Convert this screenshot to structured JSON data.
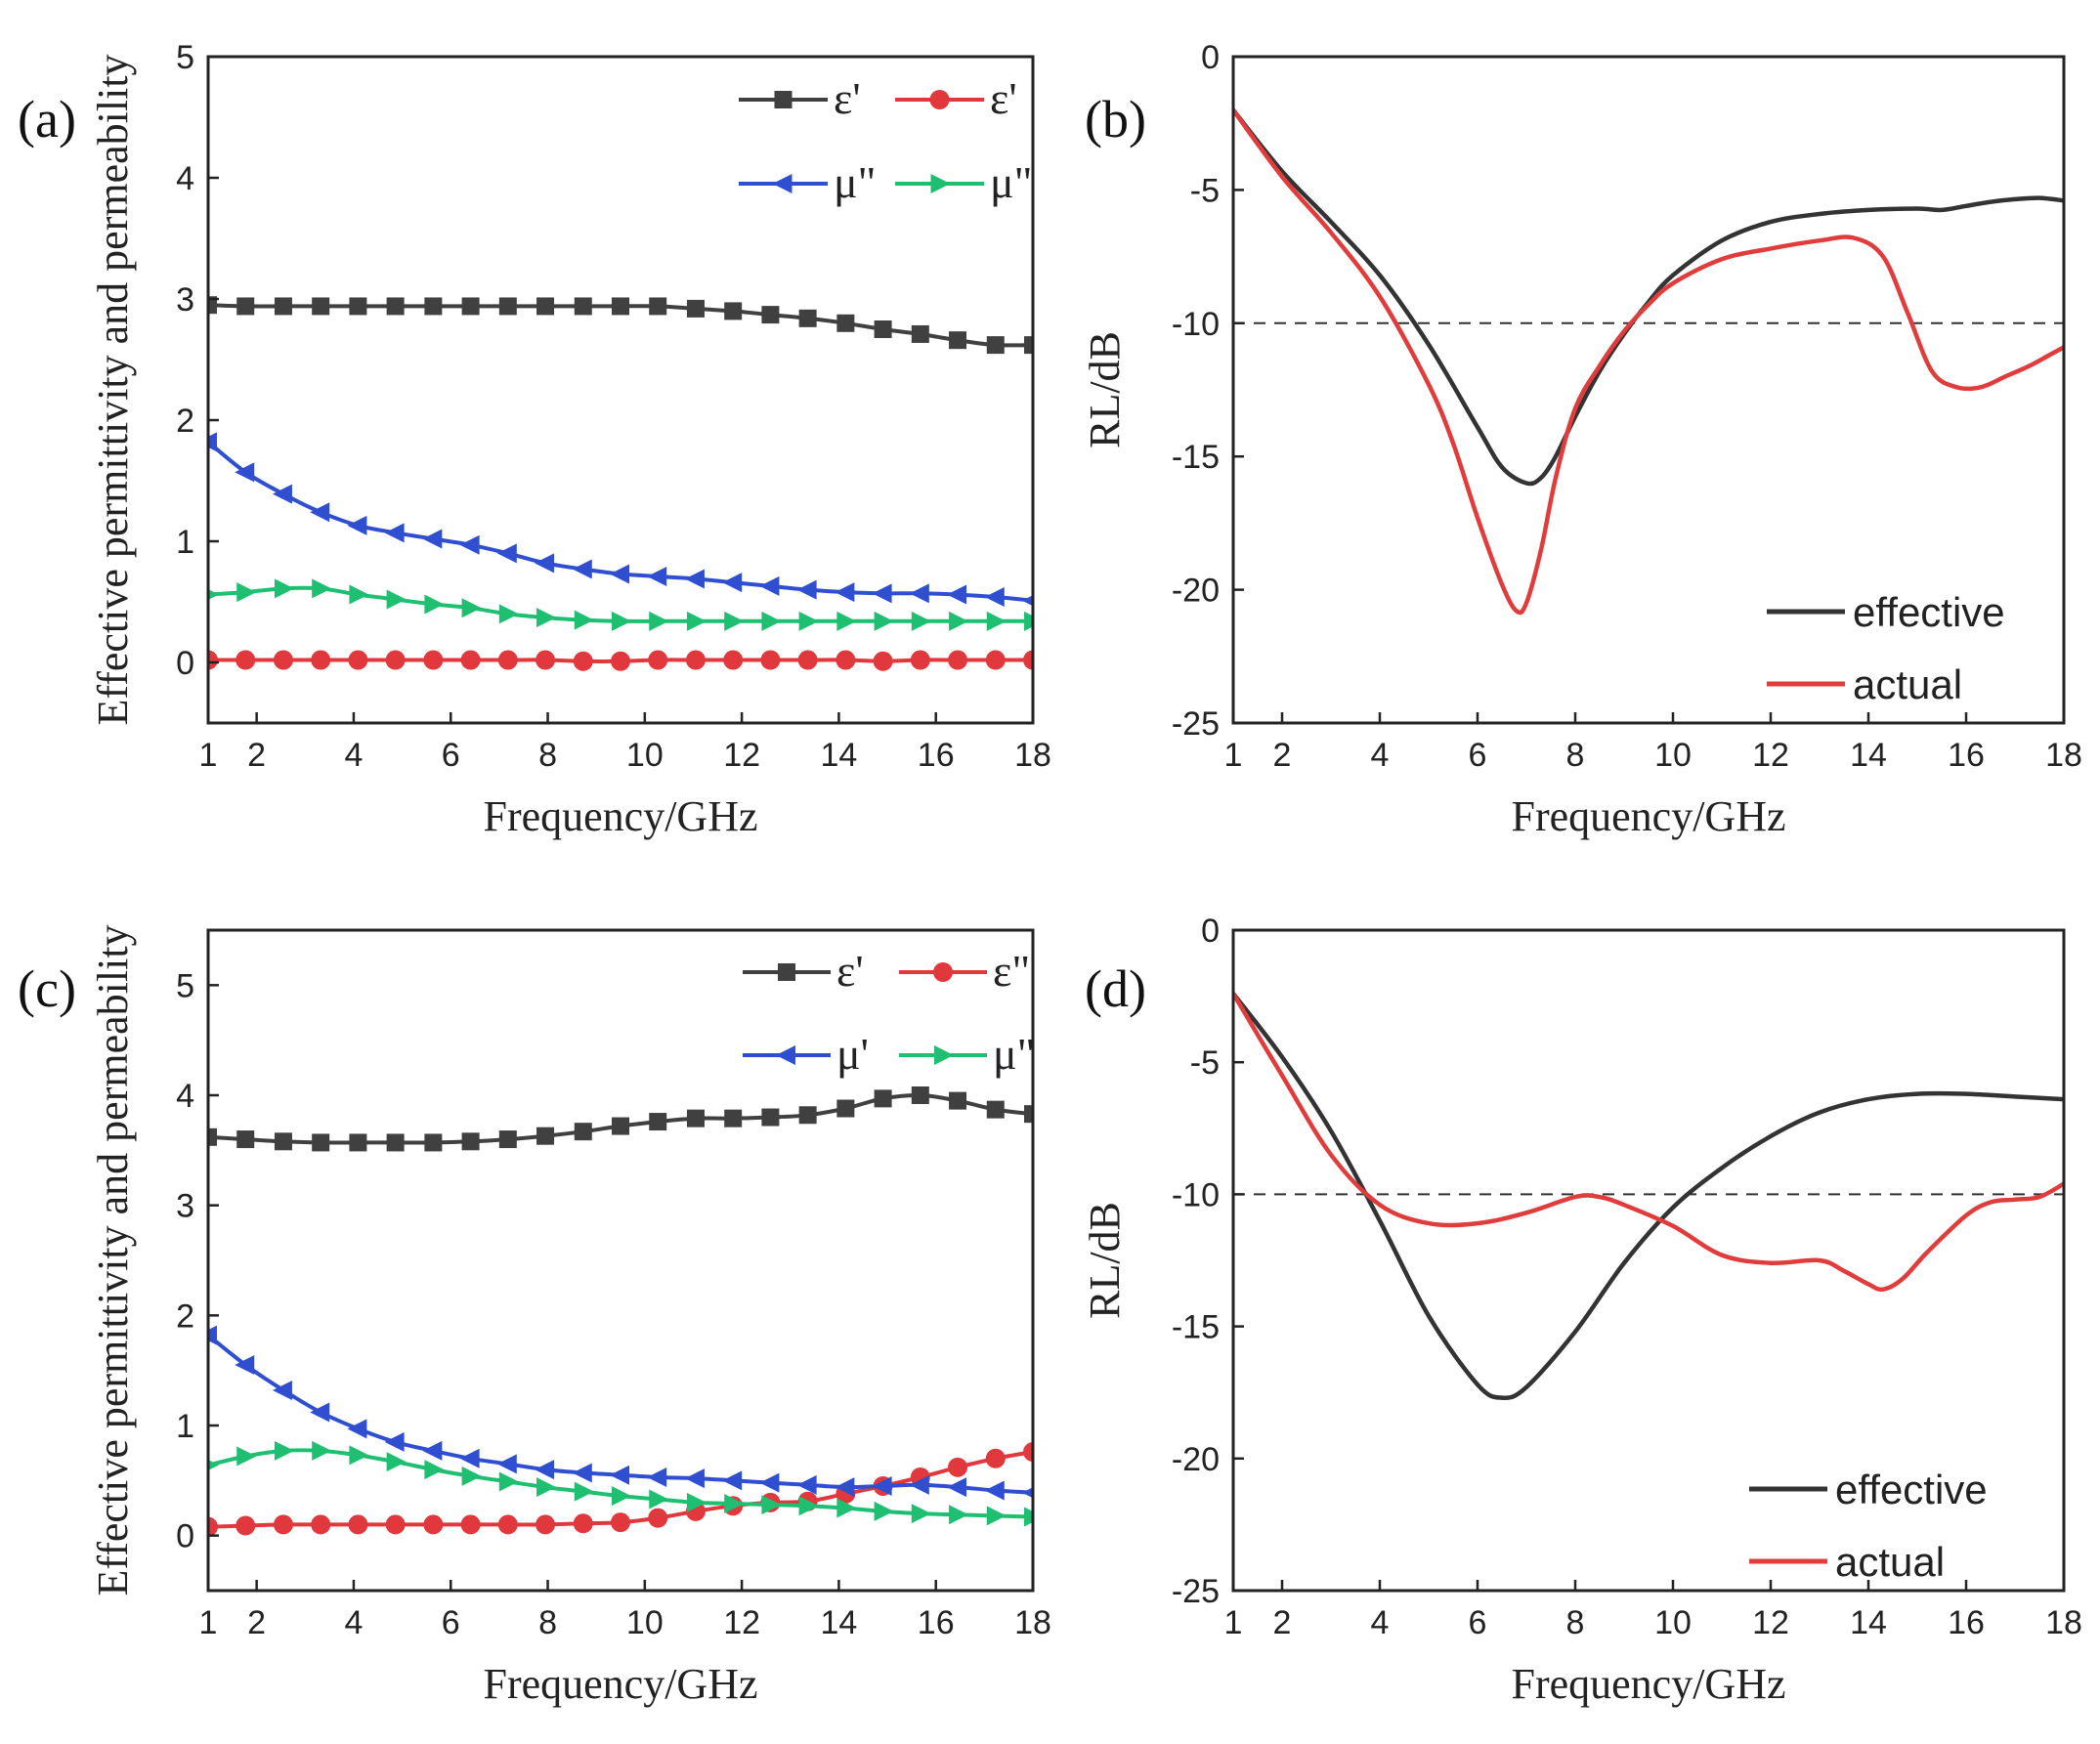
{
  "chart_data": [
    {
      "id": "a",
      "panel_label": "(a)",
      "type": "line",
      "xlabel": "Frequency/GHz",
      "ylabel": "Effective permittivity and permeability",
      "xlim": [
        1,
        18
      ],
      "ylim": [
        -0.5,
        5
      ],
      "xticks": [
        1,
        2,
        4,
        6,
        8,
        10,
        12,
        14,
        16,
        18
      ],
      "yticks": [
        0,
        1,
        2,
        3,
        4,
        5
      ],
      "series": [
        {
          "name": "ε'",
          "color": "#404040",
          "marker": "square",
          "x": [
            1,
            1.77,
            2.55,
            3.32,
            4.09,
            4.86,
            5.64,
            6.41,
            7.18,
            7.95,
            8.73,
            9.5,
            10.27,
            11.05,
            11.82,
            12.59,
            13.36,
            14.14,
            14.91,
            15.68,
            16.45,
            17.23,
            18
          ],
          "y": [
            2.95,
            2.94,
            2.94,
            2.94,
            2.94,
            2.94,
            2.94,
            2.94,
            2.94,
            2.94,
            2.94,
            2.94,
            2.94,
            2.92,
            2.9,
            2.87,
            2.84,
            2.8,
            2.75,
            2.71,
            2.66,
            2.62,
            2.62
          ]
        },
        {
          "name": "ε'",
          "color": "#e0383c",
          "marker": "circle",
          "x": [
            1,
            1.77,
            2.55,
            3.32,
            4.09,
            4.86,
            5.64,
            6.41,
            7.18,
            7.95,
            8.73,
            9.5,
            10.27,
            11.05,
            11.82,
            12.59,
            13.36,
            14.14,
            14.91,
            15.68,
            16.45,
            17.23,
            18
          ],
          "y": [
            0.02,
            0.02,
            0.02,
            0.02,
            0.02,
            0.02,
            0.02,
            0.02,
            0.02,
            0.02,
            0.01,
            0.01,
            0.02,
            0.02,
            0.02,
            0.02,
            0.02,
            0.02,
            0.01,
            0.02,
            0.02,
            0.02,
            0.02
          ]
        },
        {
          "name": "μ\"",
          "color": "#2f4fd0",
          "marker": "triangle-left",
          "x": [
            1,
            1.77,
            2.55,
            3.32,
            4.09,
            4.86,
            5.64,
            6.41,
            7.18,
            7.95,
            8.73,
            9.5,
            10.27,
            11.05,
            11.82,
            12.59,
            13.36,
            14.14,
            14.91,
            15.68,
            16.45,
            17.23,
            18
          ],
          "y": [
            1.82,
            1.57,
            1.39,
            1.24,
            1.13,
            1.07,
            1.02,
            0.97,
            0.9,
            0.82,
            0.77,
            0.73,
            0.71,
            0.69,
            0.66,
            0.63,
            0.6,
            0.58,
            0.57,
            0.57,
            0.56,
            0.54,
            0.51
          ]
        },
        {
          "name": "μ\"",
          "color": "#1fbf72",
          "marker": "triangle-right",
          "x": [
            1,
            1.77,
            2.55,
            3.32,
            4.09,
            4.86,
            5.64,
            6.41,
            7.18,
            7.95,
            8.73,
            9.5,
            10.27,
            11.05,
            11.82,
            12.59,
            13.36,
            14.14,
            14.91,
            15.68,
            16.45,
            17.23,
            18
          ],
          "y": [
            0.56,
            0.58,
            0.61,
            0.61,
            0.56,
            0.52,
            0.48,
            0.45,
            0.4,
            0.37,
            0.35,
            0.34,
            0.34,
            0.34,
            0.34,
            0.34,
            0.34,
            0.34,
            0.34,
            0.34,
            0.34,
            0.34,
            0.34
          ]
        }
      ],
      "legend_layout": "top-right"
    },
    {
      "id": "b",
      "panel_label": "(b)",
      "type": "line",
      "xlabel": "Frequency/GHz",
      "ylabel": "RL/dB",
      "xlim": [
        1,
        18
      ],
      "ylim": [
        -25,
        0
      ],
      "xticks": [
        1,
        2,
        4,
        6,
        8,
        10,
        12,
        14,
        16,
        18
      ],
      "yticks": [
        0,
        -5,
        -10,
        -15,
        -20,
        -25
      ],
      "reference_line": -10,
      "series": [
        {
          "name": "effective",
          "color": "#333333",
          "x": [
            1,
            2,
            3,
            4,
            5,
            6,
            6.5,
            7,
            7.3,
            7.6,
            8,
            8.5,
            9,
            9.5,
            10,
            11,
            12,
            13,
            14,
            15,
            15.5,
            16,
            16.5,
            17,
            17.5,
            18
          ],
          "y": [
            -2,
            -4.3,
            -6.2,
            -8.2,
            -10.8,
            -13.9,
            -15.4,
            -16,
            -15.8,
            -15,
            -13.5,
            -11.8,
            -10.4,
            -9.2,
            -8.2,
            -6.9,
            -6.2,
            -5.9,
            -5.75,
            -5.7,
            -5.75,
            -5.6,
            -5.45,
            -5.35,
            -5.3,
            -5.4
          ]
        },
        {
          "name": "actual",
          "color": "#e03c3c",
          "x": [
            1,
            2,
            3,
            4,
            5,
            5.5,
            6,
            6.5,
            6.8,
            7,
            7.3,
            7.6,
            8,
            8.5,
            9,
            9.5,
            10,
            11,
            12,
            13,
            13.7,
            14.3,
            14.8,
            15.3,
            15.8,
            16.3,
            16.8,
            17.3,
            17.7,
            18
          ],
          "y": [
            -2,
            -4.5,
            -6.6,
            -9,
            -12.3,
            -14.5,
            -17.3,
            -19.8,
            -20.8,
            -20.5,
            -18.5,
            -15.8,
            -13.2,
            -11.6,
            -10.3,
            -9.3,
            -8.5,
            -7.6,
            -7.2,
            -6.9,
            -6.8,
            -7.5,
            -9.6,
            -11.8,
            -12.4,
            -12.4,
            -12,
            -11.6,
            -11.2,
            -10.9
          ]
        }
      ],
      "legend_layout": "bottom-right"
    },
    {
      "id": "c",
      "panel_label": "(c)",
      "type": "line",
      "xlabel": "Frequency/GHz",
      "ylabel": "Effective permittivity and permeability",
      "xlim": [
        1,
        18
      ],
      "ylim": [
        -0.5,
        5.5
      ],
      "xticks": [
        1,
        2,
        4,
        6,
        8,
        10,
        12,
        14,
        16,
        18
      ],
      "yticks": [
        0,
        1,
        2,
        3,
        4,
        5
      ],
      "series": [
        {
          "name": "ε'",
          "color": "#404040",
          "marker": "square",
          "x": [
            1,
            1.77,
            2.55,
            3.32,
            4.09,
            4.86,
            5.64,
            6.41,
            7.18,
            7.95,
            8.73,
            9.5,
            10.27,
            11.05,
            11.82,
            12.59,
            13.36,
            14.14,
            14.91,
            15.68,
            16.45,
            17.23,
            18
          ],
          "y": [
            3.62,
            3.6,
            3.58,
            3.57,
            3.57,
            3.57,
            3.57,
            3.58,
            3.6,
            3.63,
            3.67,
            3.72,
            3.76,
            3.79,
            3.79,
            3.8,
            3.82,
            3.88,
            3.97,
            4.0,
            3.95,
            3.87,
            3.83
          ]
        },
        {
          "name": "ε\"",
          "color": "#e0383c",
          "marker": "circle",
          "x": [
            1,
            1.77,
            2.55,
            3.32,
            4.09,
            4.86,
            5.64,
            6.41,
            7.18,
            7.95,
            8.73,
            9.5,
            10.27,
            11.05,
            11.82,
            12.59,
            13.36,
            14.14,
            14.91,
            15.68,
            16.45,
            17.23,
            18
          ],
          "y": [
            0.08,
            0.09,
            0.1,
            0.1,
            0.1,
            0.1,
            0.1,
            0.1,
            0.1,
            0.1,
            0.11,
            0.12,
            0.16,
            0.22,
            0.27,
            0.3,
            0.31,
            0.38,
            0.45,
            0.53,
            0.62,
            0.7,
            0.76
          ]
        },
        {
          "name": "μ'",
          "color": "#2f4fd0",
          "marker": "triangle-left",
          "x": [
            1,
            1.77,
            2.55,
            3.32,
            4.09,
            4.86,
            5.64,
            6.41,
            7.18,
            7.95,
            8.73,
            9.5,
            10.27,
            11.05,
            11.82,
            12.59,
            13.36,
            14.14,
            14.91,
            15.68,
            16.45,
            17.23,
            18
          ],
          "y": [
            1.82,
            1.55,
            1.32,
            1.12,
            0.97,
            0.85,
            0.77,
            0.7,
            0.65,
            0.6,
            0.57,
            0.55,
            0.53,
            0.52,
            0.5,
            0.48,
            0.46,
            0.44,
            0.45,
            0.46,
            0.44,
            0.41,
            0.39
          ]
        },
        {
          "name": "μ\"",
          "color": "#1fbf72",
          "marker": "triangle-right",
          "x": [
            1,
            1.77,
            2.55,
            3.32,
            4.09,
            4.86,
            5.64,
            6.41,
            7.18,
            7.95,
            8.73,
            9.5,
            10.27,
            11.05,
            11.82,
            12.59,
            13.36,
            14.14,
            14.91,
            15.68,
            16.45,
            17.23,
            18
          ],
          "y": [
            0.64,
            0.72,
            0.77,
            0.77,
            0.73,
            0.67,
            0.6,
            0.54,
            0.49,
            0.44,
            0.4,
            0.36,
            0.33,
            0.3,
            0.29,
            0.28,
            0.27,
            0.25,
            0.22,
            0.2,
            0.19,
            0.18,
            0.17
          ]
        }
      ],
      "legend_layout": "top-right"
    },
    {
      "id": "d",
      "panel_label": "(d)",
      "type": "line",
      "xlabel": "Frequency/GHz",
      "ylabel": "RL/dB",
      "xlim": [
        1,
        18
      ],
      "ylim": [
        -25,
        0
      ],
      "xticks": [
        1,
        2,
        4,
        6,
        8,
        10,
        12,
        14,
        16,
        18
      ],
      "yticks": [
        0,
        -5,
        -10,
        -15,
        -20,
        -25
      ],
      "reference_line": -10,
      "series": [
        {
          "name": "effective",
          "color": "#333333",
          "x": [
            1,
            2,
            3,
            4,
            5,
            6,
            6.5,
            7,
            8,
            9,
            10,
            11,
            12,
            13,
            14,
            15,
            16,
            17,
            18
          ],
          "y": [
            -2.4,
            -4.8,
            -7.6,
            -11,
            -14.6,
            -17.2,
            -17.7,
            -17.3,
            -15.2,
            -12.6,
            -10.5,
            -9,
            -7.8,
            -6.9,
            -6.4,
            -6.2,
            -6.2,
            -6.3,
            -6.4
          ]
        },
        {
          "name": "actual",
          "color": "#e03c3c",
          "x": [
            1,
            2,
            3,
            4,
            5,
            6,
            7,
            8,
            8.5,
            9,
            10,
            11,
            12,
            13,
            13.5,
            14,
            14.3,
            14.7,
            15.2,
            16,
            16.5,
            17,
            17.5,
            18
          ],
          "y": [
            -2.4,
            -5.5,
            -8.5,
            -10.4,
            -11.1,
            -11.1,
            -10.7,
            -10.1,
            -10.1,
            -10.4,
            -11.2,
            -12.3,
            -12.6,
            -12.5,
            -12.9,
            -13.4,
            -13.6,
            -13.2,
            -12.2,
            -10.8,
            -10.3,
            -10.2,
            -10.1,
            -9.6
          ]
        }
      ],
      "legend_layout": "bottom-right"
    }
  ]
}
